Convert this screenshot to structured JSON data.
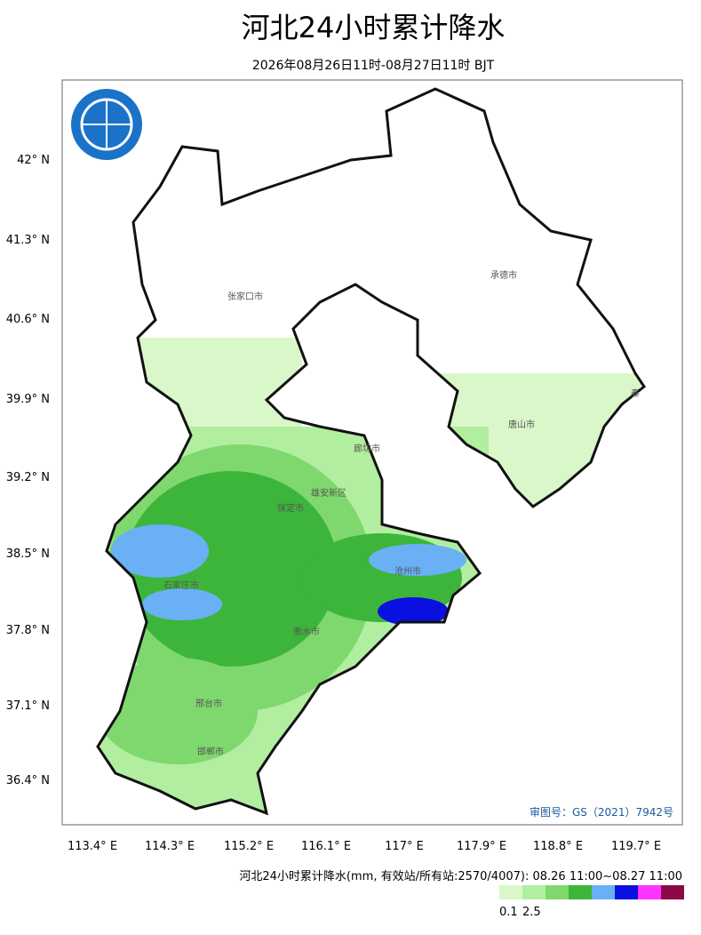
{
  "header": {
    "title": "河北24小时累计降水",
    "subtitle": "2026年08月26日11时-08月27日11时 BJT"
  },
  "map": {
    "lat_labels": [
      "42° N",
      "41.3° N",
      "40.6° N",
      "39.9° N",
      "39.2° N",
      "38.5° N",
      "37.8° N",
      "37.1° N",
      "36.4° N"
    ],
    "lon_labels": [
      "113.4° E",
      "114.3° E",
      "115.2° E",
      "116.1° E",
      "117° E",
      "117.9° E",
      "118.8° E",
      "119.7° E"
    ],
    "cities": [
      "张家口市",
      "承德市",
      "唐山市",
      "廊坊市",
      "雄安新区",
      "保定市",
      "沧州市",
      "石家庄市",
      "衡水市",
      "邢台市",
      "邯郸市",
      "秦"
    ],
    "approval": "审图号：GS（2021）7942号"
  },
  "footer": {
    "caption": "河北24小时累计降水(mm, 有效站/所有站:2570/4007): 08.26 11:00~08.27 11:00",
    "legend_colors": [
      "#d9f7c9",
      "#b2eea0",
      "#7fd86e",
      "#3db53a",
      "#6ab0f5",
      "#0a10e0",
      "#ff33ff",
      "#8b0a45"
    ],
    "legend_labels": [
      "0.1",
      "2.5"
    ]
  }
}
